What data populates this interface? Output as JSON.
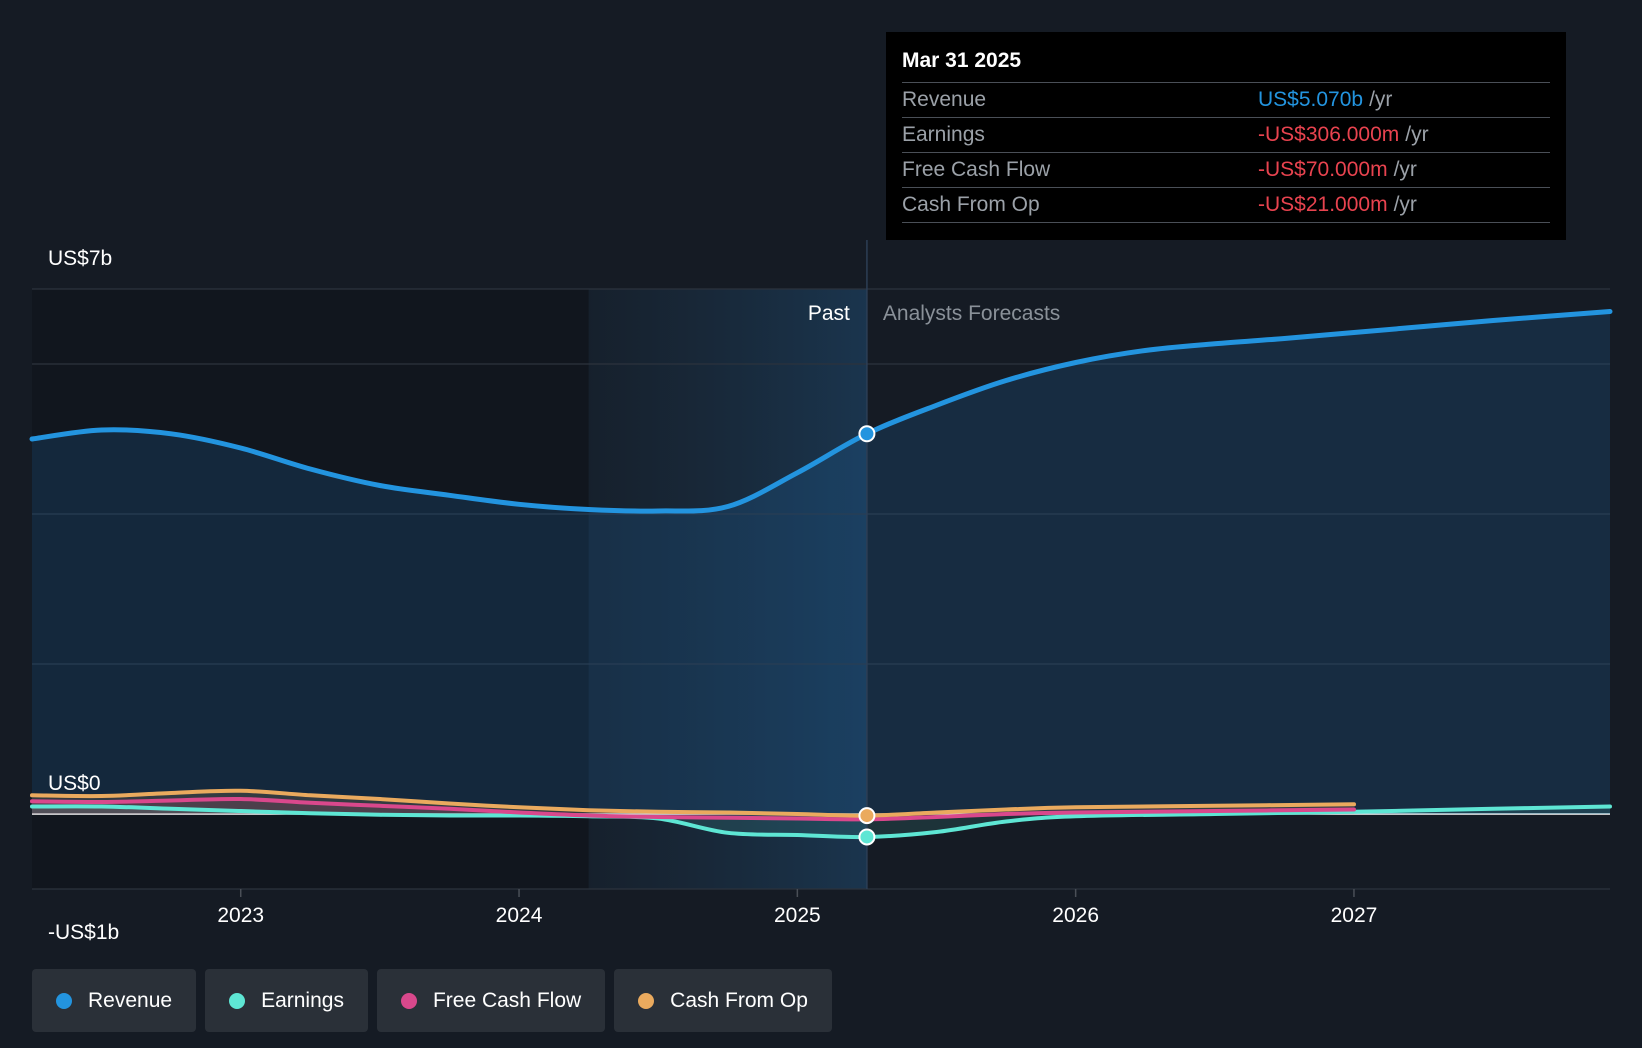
{
  "chart_data": {
    "type": "area",
    "y_axis": {
      "min": -1,
      "max": 7,
      "unit": "US$ billions",
      "labels": [
        {
          "value": 7,
          "text": "US$7b"
        },
        {
          "value": 0,
          "text": "US$0"
        },
        {
          "value": -1,
          "text": "-US$1b"
        }
      ],
      "gridlines": [
        7,
        6,
        4,
        2,
        -1
      ]
    },
    "x_axis": {
      "min": 2022.25,
      "max": 2027.92,
      "ticks": [
        {
          "value": 2023,
          "text": "2023"
        },
        {
          "value": 2024,
          "text": "2024"
        },
        {
          "value": 2025,
          "text": "2025"
        },
        {
          "value": 2026,
          "text": "2026"
        },
        {
          "value": 2027,
          "text": "2027"
        }
      ]
    },
    "past_region_start": 2024.25,
    "divider_x": 2025.25,
    "past_label": "Past",
    "forecast_label": "Analysts Forecasts",
    "series": [
      {
        "name": "Revenue",
        "color": "#2394df",
        "points": [
          [
            2022.25,
            5.0
          ],
          [
            2022.5,
            5.12
          ],
          [
            2022.75,
            5.07
          ],
          [
            2023.0,
            4.88
          ],
          [
            2023.25,
            4.6
          ],
          [
            2023.5,
            4.38
          ],
          [
            2023.75,
            4.25
          ],
          [
            2024.0,
            4.13
          ],
          [
            2024.25,
            4.06
          ],
          [
            2024.5,
            4.04
          ],
          [
            2024.75,
            4.1
          ],
          [
            2025.0,
            4.55
          ],
          [
            2025.25,
            5.07
          ],
          [
            2025.5,
            5.45
          ],
          [
            2025.75,
            5.78
          ],
          [
            2026.0,
            6.02
          ],
          [
            2026.25,
            6.18
          ],
          [
            2026.5,
            6.27
          ],
          [
            2026.75,
            6.34
          ],
          [
            2027.0,
            6.42
          ],
          [
            2027.25,
            6.5
          ],
          [
            2027.5,
            6.58
          ],
          [
            2027.92,
            6.7
          ]
        ]
      },
      {
        "name": "Earnings",
        "color": "#5ee6d4",
        "points": [
          [
            2022.25,
            0.1
          ],
          [
            2022.5,
            0.1
          ],
          [
            2022.75,
            0.07
          ],
          [
            2023.0,
            0.04
          ],
          [
            2023.25,
            0.01
          ],
          [
            2023.5,
            -0.01
          ],
          [
            2023.75,
            -0.02
          ],
          [
            2024.0,
            -0.02
          ],
          [
            2024.25,
            -0.03
          ],
          [
            2024.5,
            -0.06
          ],
          [
            2024.75,
            -0.25
          ],
          [
            2025.0,
            -0.28
          ],
          [
            2025.25,
            -0.306
          ],
          [
            2025.5,
            -0.24
          ],
          [
            2025.75,
            -0.1
          ],
          [
            2026.0,
            -0.03
          ],
          [
            2026.5,
            0.0
          ],
          [
            2027.0,
            0.03
          ],
          [
            2027.5,
            0.07
          ],
          [
            2027.92,
            0.1
          ]
        ]
      },
      {
        "name": "Free Cash Flow",
        "color": "#d9488c",
        "points": [
          [
            2022.25,
            0.17
          ],
          [
            2022.5,
            0.16
          ],
          [
            2022.75,
            0.18
          ],
          [
            2023.0,
            0.2
          ],
          [
            2023.25,
            0.15
          ],
          [
            2023.5,
            0.11
          ],
          [
            2023.75,
            0.07
          ],
          [
            2024.0,
            0.02
          ],
          [
            2024.25,
            -0.02
          ],
          [
            2024.5,
            -0.04
          ],
          [
            2024.75,
            -0.05
          ],
          [
            2025.0,
            -0.06
          ],
          [
            2025.25,
            -0.07
          ],
          [
            2025.5,
            -0.04
          ],
          [
            2025.75,
            0.0
          ],
          [
            2026.0,
            0.02
          ],
          [
            2026.5,
            0.04
          ],
          [
            2027.0,
            0.06
          ]
        ]
      },
      {
        "name": "Cash From Op",
        "color": "#eaaa5e",
        "points": [
          [
            2022.25,
            0.25
          ],
          [
            2022.5,
            0.24
          ],
          [
            2022.75,
            0.28
          ],
          [
            2023.0,
            0.31
          ],
          [
            2023.25,
            0.25
          ],
          [
            2023.5,
            0.2
          ],
          [
            2023.75,
            0.14
          ],
          [
            2024.0,
            0.09
          ],
          [
            2024.25,
            0.05
          ],
          [
            2024.5,
            0.03
          ],
          [
            2024.75,
            0.02
          ],
          [
            2025.0,
            0.0
          ],
          [
            2025.25,
            -0.021
          ],
          [
            2025.5,
            0.02
          ],
          [
            2025.75,
            0.06
          ],
          [
            2026.0,
            0.09
          ],
          [
            2026.5,
            0.11
          ],
          [
            2027.0,
            0.13
          ]
        ]
      }
    ]
  },
  "tooltip": {
    "date": "Mar 31 2025",
    "rows": [
      {
        "label": "Revenue",
        "value": "US$5.070b",
        "unit": "/yr",
        "color": "#2394df"
      },
      {
        "label": "Earnings",
        "value": "-US$306.000m",
        "unit": "/yr",
        "color": "#e8434f"
      },
      {
        "label": "Free Cash Flow",
        "value": "-US$70.000m",
        "unit": "/yr",
        "color": "#e8434f"
      },
      {
        "label": "Cash From Op",
        "value": "-US$21.000m",
        "unit": "/yr",
        "color": "#e8434f"
      }
    ]
  },
  "legend": [
    {
      "label": "Revenue",
      "color": "#2394df"
    },
    {
      "label": "Earnings",
      "color": "#5ee6d4"
    },
    {
      "label": "Free Cash Flow",
      "color": "#d9488c"
    },
    {
      "label": "Cash From Op",
      "color": "#eaaa5e"
    }
  ]
}
